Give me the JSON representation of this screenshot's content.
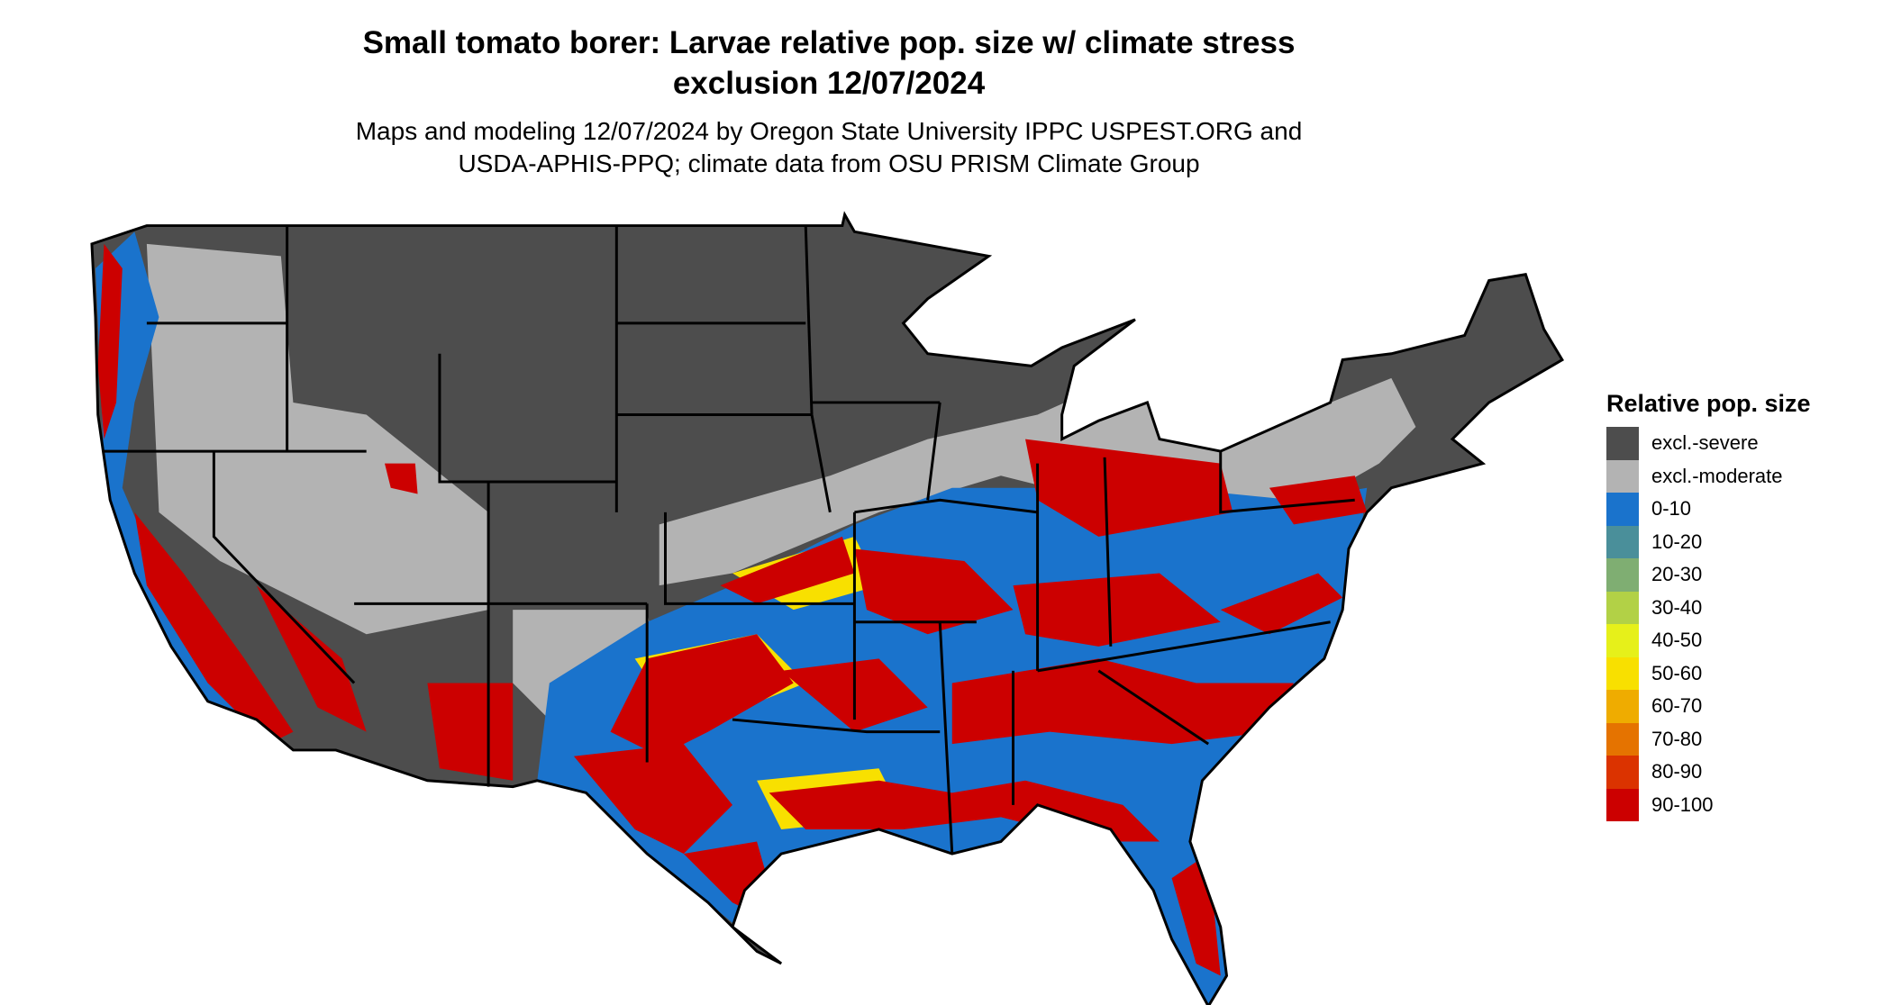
{
  "title": {
    "line1": "Small tomato borer: Larvae relative pop. size w/ climate stress",
    "line2": "exclusion 12/07/2024"
  },
  "subtitle": {
    "line1": "Maps and modeling 12/07/2024 by Oregon State University IPPC USPEST.ORG and",
    "line2": "USDA-APHIS-PPQ; climate data from OSU PRISM Climate Group"
  },
  "legend": {
    "title": "Relative pop. size",
    "items": [
      {
        "label": "excl.-severe",
        "color": "#4d4d4d"
      },
      {
        "label": "excl.-moderate",
        "color": "#b3b3b3"
      },
      {
        "label": "0-10",
        "color": "#1a73cc"
      },
      {
        "label": "10-20",
        "color": "#4a8f9a"
      },
      {
        "label": "20-30",
        "color": "#7fae72"
      },
      {
        "label": "30-40",
        "color": "#b2d146"
      },
      {
        "label": "40-50",
        "color": "#e6f01a"
      },
      {
        "label": "50-60",
        "color": "#f8e000"
      },
      {
        "label": "60-70",
        "color": "#efac00"
      },
      {
        "label": "70-80",
        "color": "#e57300"
      },
      {
        "label": "80-90",
        "color": "#db3300"
      },
      {
        "label": "90-100",
        "color": "#cc0000"
      }
    ]
  }
}
